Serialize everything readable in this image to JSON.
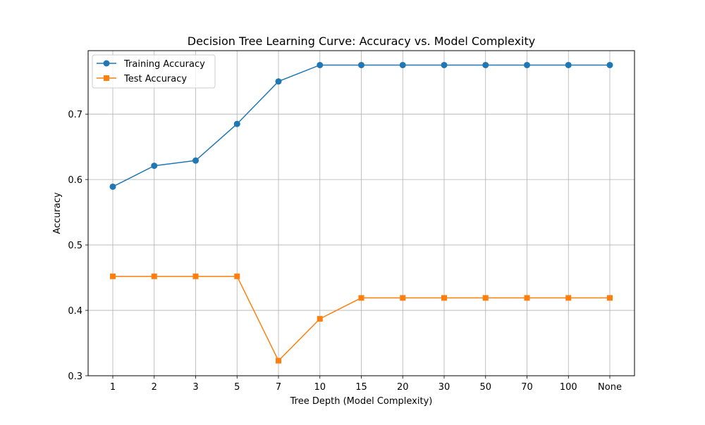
{
  "chart_data": {
    "type": "line",
    "title": "Decision Tree Learning Curve: Accuracy vs. Model Complexity",
    "xlabel": "Tree Depth (Model Complexity)",
    "ylabel": "Accuracy",
    "categories": [
      "1",
      "2",
      "3",
      "5",
      "7",
      "10",
      "15",
      "20",
      "30",
      "50",
      "70",
      "100",
      "None"
    ],
    "ylim": [
      0.3,
      0.797
    ],
    "yticks": [
      0.3,
      0.4,
      0.5,
      0.6,
      0.7
    ],
    "grid": true,
    "legend_position": "top-left",
    "series": [
      {
        "name": "Training Accuracy",
        "color": "#1f77b4",
        "marker": "circle",
        "values": [
          0.589,
          0.621,
          0.629,
          0.685,
          0.75,
          0.775,
          0.775,
          0.775,
          0.775,
          0.775,
          0.775,
          0.775,
          0.775
        ]
      },
      {
        "name": "Test Accuracy",
        "color": "#ff7f0e",
        "marker": "square",
        "values": [
          0.452,
          0.452,
          0.452,
          0.452,
          0.323,
          0.387,
          0.419,
          0.419,
          0.419,
          0.419,
          0.419,
          0.419,
          0.419
        ]
      }
    ]
  }
}
